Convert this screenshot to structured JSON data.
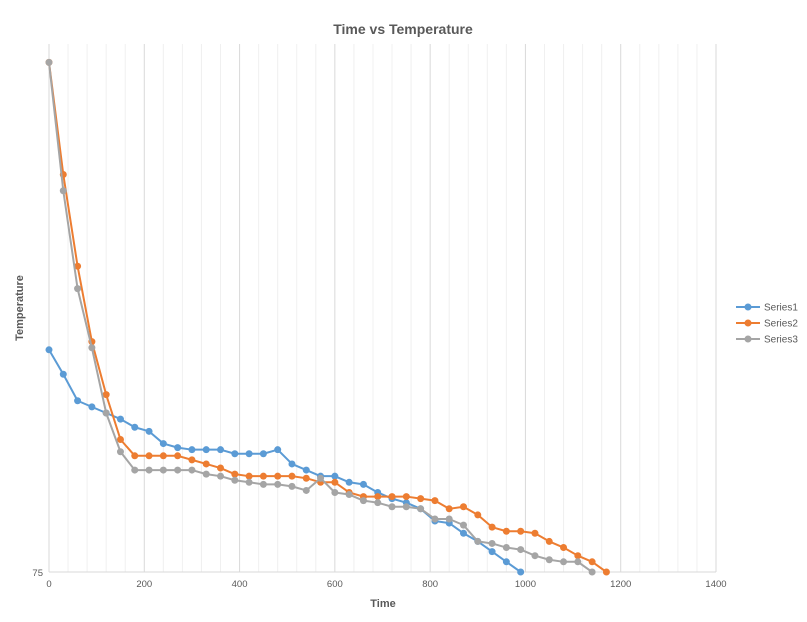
{
  "chart_data": {
    "type": "line",
    "title": "Time vs Temperature",
    "xlabel": "Time",
    "ylabel": "Temperature",
    "xlim": [
      0,
      1400
    ],
    "ylim": [
      75,
      100
    ],
    "x_ticks": [
      0,
      200,
      400,
      600,
      800,
      1000,
      1200,
      1400
    ],
    "y_ticks": [
      75
    ],
    "x_grid_major": 200,
    "x_grid_minor": 40,
    "grid": true,
    "legend_position": "right",
    "series": [
      {
        "name": "Series1",
        "color": "#5B9BD5",
        "x": [
          0,
          30,
          60,
          90,
          120,
          150,
          180,
          210,
          240,
          270,
          300,
          330,
          360,
          390,
          420,
          450,
          480,
          510,
          540,
          570,
          600,
          630,
          660,
          690,
          720,
          750,
          780,
          810,
          840,
          870,
          900,
          930,
          960,
          990
        ],
        "y": [
          85.9,
          84.7,
          83.4,
          83.1,
          82.8,
          82.5,
          82.1,
          81.9,
          81.3,
          81.1,
          81.0,
          81.0,
          81.0,
          80.8,
          80.8,
          80.8,
          81.0,
          80.3,
          80.0,
          79.7,
          79.7,
          79.4,
          79.3,
          78.9,
          78.6,
          78.4,
          78.1,
          77.5,
          77.4,
          76.9,
          76.5,
          76.0,
          75.5,
          75.0
        ]
      },
      {
        "name": "Series2",
        "color": "#ED7D31",
        "x": [
          0,
          30,
          60,
          90,
          120,
          150,
          180,
          210,
          240,
          270,
          300,
          330,
          360,
          390,
          420,
          450,
          480,
          510,
          540,
          570,
          600,
          630,
          660,
          690,
          720,
          750,
          780,
          810,
          840,
          870,
          900,
          930,
          960,
          990,
          1020,
          1050,
          1080,
          1110,
          1140,
          1170
        ],
        "y": [
          100.0,
          94.5,
          90.0,
          86.3,
          83.7,
          81.5,
          80.7,
          80.7,
          80.7,
          80.7,
          80.5,
          80.3,
          80.1,
          79.8,
          79.7,
          79.7,
          79.7,
          79.7,
          79.6,
          79.4,
          79.4,
          78.9,
          78.7,
          78.7,
          78.7,
          78.7,
          78.6,
          78.5,
          78.1,
          78.2,
          77.8,
          77.2,
          77.0,
          77.0,
          76.9,
          76.5,
          76.2,
          75.8,
          75.5,
          75.0
        ]
      },
      {
        "name": "Series3",
        "color": "#A5A5A5",
        "x": [
          0,
          30,
          60,
          90,
          120,
          150,
          180,
          210,
          240,
          270,
          300,
          330,
          360,
          390,
          420,
          450,
          480,
          510,
          540,
          570,
          600,
          630,
          660,
          690,
          720,
          750,
          780,
          810,
          840,
          870,
          900,
          930,
          960,
          990,
          1020,
          1050,
          1080,
          1110,
          1140
        ],
        "y": [
          100.0,
          93.7,
          88.9,
          86.0,
          82.8,
          80.9,
          80.0,
          80.0,
          80.0,
          80.0,
          80.0,
          79.8,
          79.7,
          79.5,
          79.4,
          79.3,
          79.3,
          79.2,
          79.0,
          79.6,
          78.9,
          78.8,
          78.5,
          78.4,
          78.2,
          78.2,
          78.1,
          77.6,
          77.6,
          77.3,
          76.5,
          76.4,
          76.2,
          76.1,
          75.8,
          75.6,
          75.5,
          75.5,
          75.0
        ]
      }
    ]
  }
}
